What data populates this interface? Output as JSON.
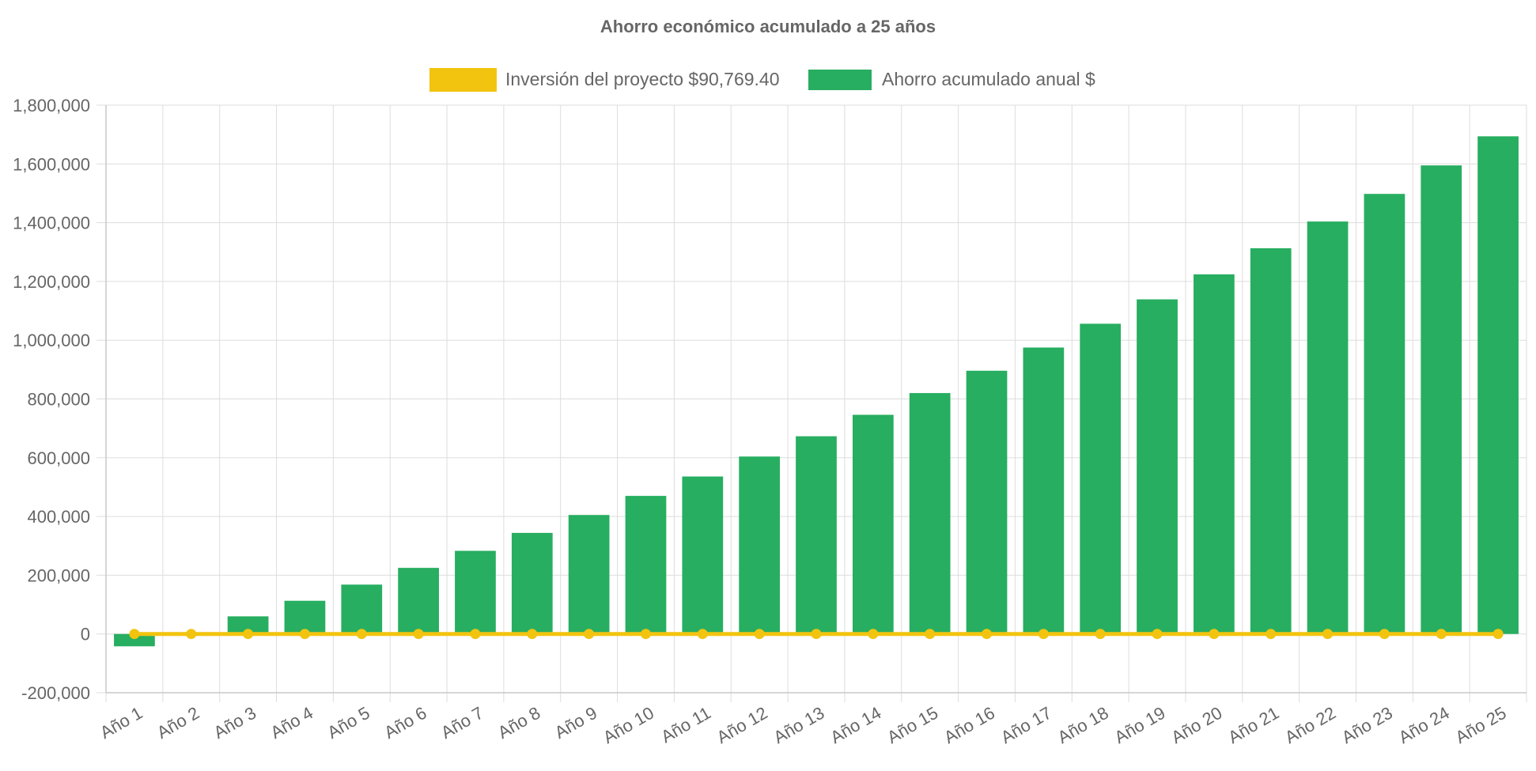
{
  "chart_data": {
    "type": "bar",
    "title": "Ahorro económico acumulado a 25 años",
    "categories": [
      "Año 1",
      "Año 2",
      "Año 3",
      "Año 4",
      "Año 5",
      "Año 6",
      "Año 7",
      "Año 8",
      "Año 9",
      "Año 10",
      "Año 11",
      "Año 12",
      "Año 13",
      "Año 14",
      "Año 15",
      "Año 16",
      "Año 17",
      "Año 18",
      "Año 19",
      "Año 20",
      "Año 21",
      "Año 22",
      "Año 23",
      "Año 24",
      "Año 25"
    ],
    "series": [
      {
        "name": "Inversión del proyecto $90,769.40",
        "type": "line",
        "color": "#f2c40f",
        "values": [
          0,
          0,
          0,
          0,
          0,
          0,
          0,
          0,
          0,
          0,
          0,
          0,
          0,
          0,
          0,
          0,
          0,
          0,
          0,
          0,
          0,
          0,
          0,
          0,
          0
        ]
      },
      {
        "name": "Ahorro acumulado anual $",
        "type": "bar",
        "color": "#27ae60",
        "values": [
          -42000,
          6000,
          60000,
          113000,
          168000,
          225000,
          283000,
          344000,
          405000,
          470000,
          536000,
          604000,
          673000,
          746000,
          820000,
          896000,
          975000,
          1056000,
          1139000,
          1224000,
          1313000,
          1404000,
          1498000,
          1595000,
          1694000
        ]
      }
    ],
    "ylim": [
      -200000,
      1800000
    ],
    "yticks": [
      -200000,
      0,
      200000,
      400000,
      600000,
      800000,
      1000000,
      1200000,
      1400000,
      1600000,
      1800000
    ],
    "ytick_labels": [
      "-200,000",
      "0",
      "200,000",
      "400,000",
      "600,000",
      "800,000",
      "1,000,000",
      "1,200,000",
      "1,400,000",
      "1,600,000",
      "1,800,000"
    ],
    "grid": true,
    "legend_position": "top-center"
  }
}
